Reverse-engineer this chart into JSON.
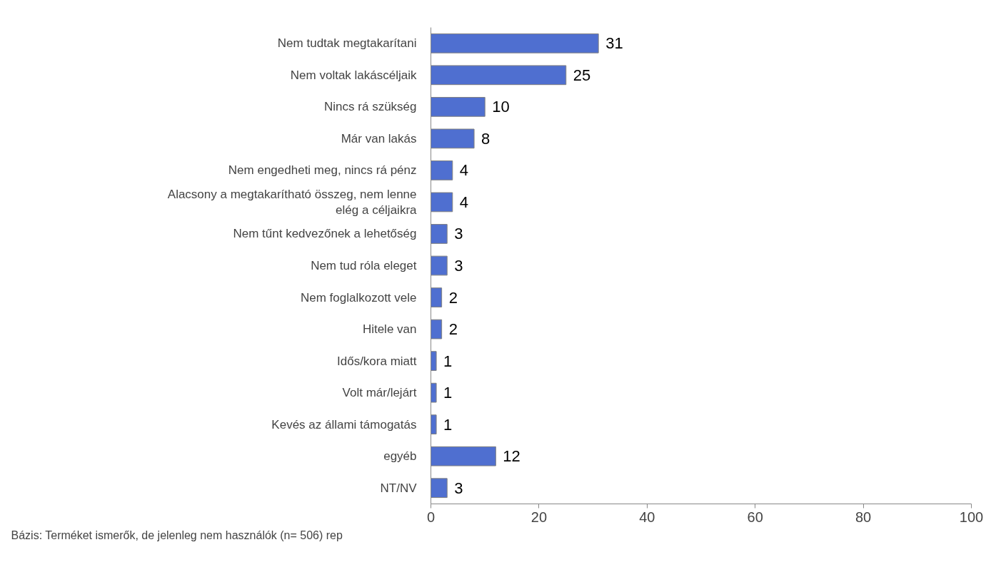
{
  "chart_data": {
    "type": "bar",
    "orientation": "horizontal",
    "categories": [
      "Nem tudtak megtakarítani",
      "Nem voltak lakáscéljaik",
      "Nincs rá szükség",
      "Már van lakás",
      "Nem engedheti meg, nincs rá pénz",
      "Alacsony a megtakarítható összeg, nem lenne elég a céljaikra",
      "Nem tűnt kedvezőnek a lehetőség",
      "Nem tud róla eleget",
      "Nem foglalkozott vele",
      "Hitele van",
      "Idős/kora miatt",
      "Volt már/lejárt",
      "Kevés az állami támogatás",
      "egyéb",
      "NT/NV"
    ],
    "values": [
      31,
      25,
      10,
      8,
      4,
      4,
      3,
      3,
      2,
      2,
      1,
      1,
      1,
      12,
      3
    ],
    "color": "#4f6fd0",
    "xlim": [
      0,
      100
    ],
    "xticks": [
      0,
      20,
      40,
      60,
      80,
      100
    ],
    "data_labels": true,
    "grid": false,
    "annotations": [
      "Bázis: Terméket ismerők, de jelenleg nem használók (n= 506) rep"
    ]
  }
}
